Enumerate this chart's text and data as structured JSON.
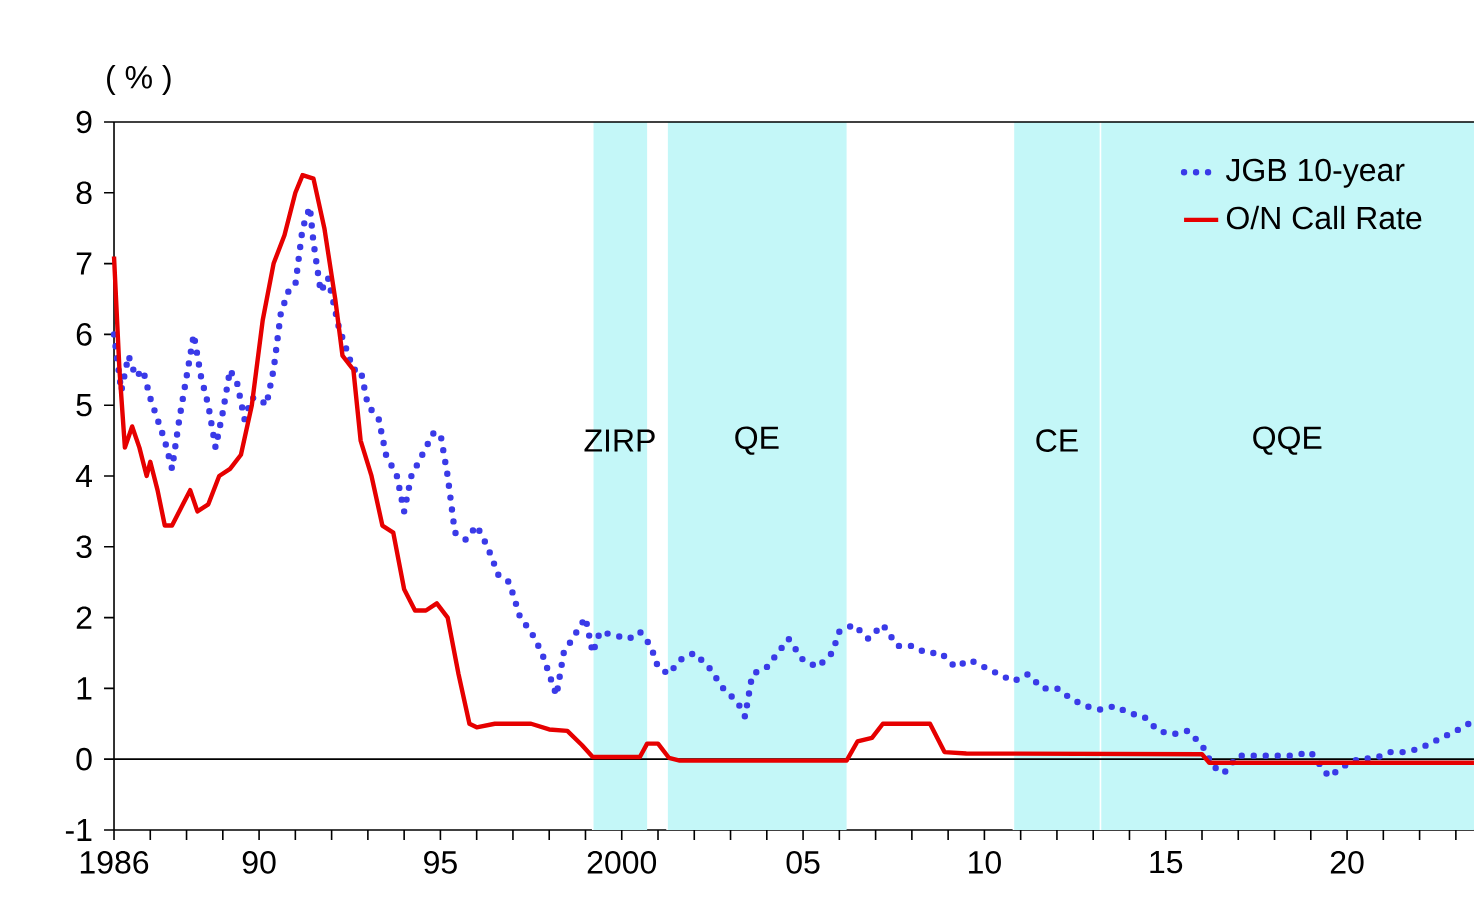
{
  "chart_data": {
    "type": "line",
    "ylabel": "( % )",
    "xlim": [
      1986,
      2023.5
    ],
    "ylim": [
      -1,
      9
    ],
    "xticks": [
      {
        "value": 1986,
        "label": "1986"
      },
      {
        "value": 1987,
        "label": null
      },
      {
        "value": 1988,
        "label": null
      },
      {
        "value": 1989,
        "label": null
      },
      {
        "value": 1990,
        "label": "90"
      },
      {
        "value": 1991,
        "label": null
      },
      {
        "value": 1992,
        "label": null
      },
      {
        "value": 1993,
        "label": null
      },
      {
        "value": 1994,
        "label": null
      },
      {
        "value": 1995,
        "label": "95"
      },
      {
        "value": 1996,
        "label": null
      },
      {
        "value": 1997,
        "label": null
      },
      {
        "value": 1998,
        "label": null
      },
      {
        "value": 1999,
        "label": null
      },
      {
        "value": 2000,
        "label": "2000"
      },
      {
        "value": 2001,
        "label": null
      },
      {
        "value": 2002,
        "label": null
      },
      {
        "value": 2003,
        "label": null
      },
      {
        "value": 2004,
        "label": null
      },
      {
        "value": 2005,
        "label": "05"
      },
      {
        "value": 2006,
        "label": null
      },
      {
        "value": 2007,
        "label": null
      },
      {
        "value": 2008,
        "label": null
      },
      {
        "value": 2009,
        "label": null
      },
      {
        "value": 2010,
        "label": "10"
      },
      {
        "value": 2011,
        "label": null
      },
      {
        "value": 2012,
        "label": null
      },
      {
        "value": 2013,
        "label": null
      },
      {
        "value": 2014,
        "label": null
      },
      {
        "value": 2015,
        "label": "15"
      },
      {
        "value": 2016,
        "label": null
      },
      {
        "value": 2017,
        "label": null
      },
      {
        "value": 2018,
        "label": null
      },
      {
        "value": 2019,
        "label": null
      },
      {
        "value": 2020,
        "label": "20"
      },
      {
        "value": 2021,
        "label": null
      },
      {
        "value": 2022,
        "label": null
      },
      {
        "value": 2023,
        "label": null
      }
    ],
    "yticks": [
      -1,
      0,
      1,
      2,
      3,
      4,
      5,
      6,
      7,
      8,
      9
    ],
    "grid": false,
    "legend": "top right",
    "bands": [
      {
        "axis": "x",
        "from": 1999.2,
        "to": 2000.7,
        "label": "ZIRP",
        "color": "#c4f7f8"
      },
      {
        "axis": "x",
        "from": 2001.25,
        "to": 2006.2,
        "label": "QE",
        "color": "#c4f7f8"
      },
      {
        "axis": "x",
        "from": 2010.8,
        "to": 2013.2,
        "label": "CE",
        "color": "#c4f7f8"
      },
      {
        "axis": "x",
        "from": 2013.2,
        "to": 2023.5,
        "label": "QQE",
        "color": "#c4f7f8"
      }
    ],
    "ref_lines": [
      {
        "axis": "y",
        "value": 0,
        "color": "#000000"
      }
    ],
    "series": [
      {
        "name": "JGB 10-year",
        "color": "#3a3ae8",
        "line_style": "dotted",
        "x": [
          1986.0,
          1986.2,
          1986.4,
          1986.6,
          1986.8,
          1987.0,
          1987.2,
          1987.4,
          1987.6,
          1987.8,
          1988.0,
          1988.2,
          1988.4,
          1988.6,
          1988.8,
          1989.0,
          1989.2,
          1989.4,
          1989.6,
          1989.8,
          1990.0,
          1990.2,
          1990.4,
          1990.6,
          1990.8,
          1991.0,
          1991.2,
          1991.4,
          1991.5,
          1991.7,
          1991.9,
          1992.2,
          1992.6,
          1992.8,
          1993.0,
          1993.3,
          1993.5,
          1993.8,
          1994.0,
          1994.2,
          1994.5,
          1994.8,
          1995.0,
          1995.2,
          1995.4,
          1995.7,
          1996.0,
          1996.3,
          1996.6,
          1996.9,
          1997.2,
          1997.5,
          1997.8,
          1998.0,
          1998.2,
          1998.4,
          1999.0,
          1999.2,
          1999.4,
          1999.8,
          2000.2,
          2000.5,
          2000.8,
          2001.0,
          2001.3,
          2001.6,
          2002.0,
          2002.4,
          2002.8,
          2003.2,
          2003.4,
          2003.6,
          2004.0,
          2004.3,
          2004.6,
          2005.0,
          2005.4,
          2005.8,
          2006.0,
          2006.4,
          2006.8,
          2007.2,
          2007.6,
          2008.0,
          2008.4,
          2008.8,
          2009.2,
          2009.6,
          2010.0,
          2010.4,
          2010.8,
          2011.2,
          2011.6,
          2012.0,
          2012.4,
          2012.8,
          2013.2,
          2013.6,
          2014.0,
          2014.4,
          2014.8,
          2015.2,
          2015.6,
          2016.0,
          2016.3,
          2016.6,
          2017.0,
          2017.5,
          2018.0,
          2018.5,
          2019.0,
          2019.5,
          2019.9,
          2020.3,
          2020.8,
          2021.2,
          2021.6,
          2022.0,
          2022.4,
          2022.8,
          2023.2,
          2023.5
        ],
        "values": [
          6.0,
          5.2,
          5.7,
          5.4,
          5.5,
          5.1,
          4.8,
          4.5,
          4.1,
          4.8,
          5.4,
          6.0,
          5.4,
          5.0,
          4.4,
          4.9,
          5.5,
          5.3,
          4.8,
          5.1,
          5.1,
          5.0,
          5.5,
          6.3,
          6.6,
          6.7,
          7.5,
          7.8,
          7.3,
          6.6,
          6.8,
          6.1,
          5.5,
          5.5,
          5.0,
          4.8,
          4.3,
          4.0,
          3.5,
          4.0,
          4.3,
          4.6,
          4.6,
          4.0,
          3.2,
          3.1,
          3.3,
          3.0,
          2.6,
          2.5,
          2.0,
          1.8,
          1.5,
          1.2,
          0.9,
          1.5,
          2.0,
          1.5,
          1.8,
          1.75,
          1.7,
          1.8,
          1.6,
          1.3,
          1.2,
          1.4,
          1.5,
          1.3,
          1.0,
          0.8,
          0.6,
          1.2,
          1.3,
          1.5,
          1.7,
          1.4,
          1.3,
          1.5,
          1.8,
          1.9,
          1.7,
          1.9,
          1.6,
          1.6,
          1.5,
          1.5,
          1.3,
          1.4,
          1.3,
          1.2,
          1.1,
          1.2,
          1.0,
          1.0,
          0.85,
          0.75,
          0.7,
          0.75,
          0.65,
          0.6,
          0.4,
          0.35,
          0.4,
          0.2,
          -0.1,
          -0.2,
          0.05,
          0.05,
          0.05,
          0.05,
          0.1,
          -0.25,
          -0.1,
          0.0,
          0.02,
          0.1,
          0.1,
          0.15,
          0.25,
          0.35,
          0.45,
          0.55
        ]
      },
      {
        "name": "O/N Call Rate",
        "color": "#e60000",
        "line_style": "solid",
        "x": [
          1986.0,
          1986.15,
          1986.3,
          1986.5,
          1986.7,
          1986.9,
          1987.0,
          1987.2,
          1987.4,
          1987.6,
          1987.9,
          1988.1,
          1988.3,
          1988.6,
          1988.9,
          1989.2,
          1989.5,
          1989.8,
          1990.1,
          1990.4,
          1990.7,
          1991.0,
          1991.2,
          1991.5,
          1991.8,
          1992.1,
          1992.3,
          1992.6,
          1992.8,
          1993.1,
          1993.4,
          1993.7,
          1994.0,
          1994.3,
          1994.6,
          1994.9,
          1995.2,
          1995.5,
          1995.8,
          1996.0,
          1996.5,
          1997.5,
          1998.0,
          1998.5,
          1998.9,
          1999.2,
          2000.5,
          2000.7,
          2001.0,
          2001.3,
          2001.6,
          2006.2,
          2006.5,
          2006.9,
          2007.2,
          2008.5,
          2008.9,
          2009.5,
          2016.0,
          2016.2,
          2023.5
        ],
        "values": [
          7.1,
          5.5,
          4.4,
          4.7,
          4.4,
          4.0,
          4.2,
          3.8,
          3.3,
          3.3,
          3.6,
          3.8,
          3.5,
          3.6,
          4.0,
          4.1,
          4.3,
          5.0,
          6.2,
          7.0,
          7.4,
          8.0,
          8.25,
          8.2,
          7.5,
          6.5,
          5.7,
          5.5,
          4.5,
          4.0,
          3.3,
          3.2,
          2.4,
          2.1,
          2.1,
          2.2,
          2.0,
          1.2,
          0.5,
          0.45,
          0.5,
          0.5,
          0.42,
          0.4,
          0.2,
          0.03,
          0.03,
          0.22,
          0.22,
          0.02,
          -0.02,
          -0.02,
          0.25,
          0.3,
          0.5,
          0.5,
          0.1,
          0.08,
          0.07,
          -0.05,
          -0.05
        ]
      }
    ]
  }
}
